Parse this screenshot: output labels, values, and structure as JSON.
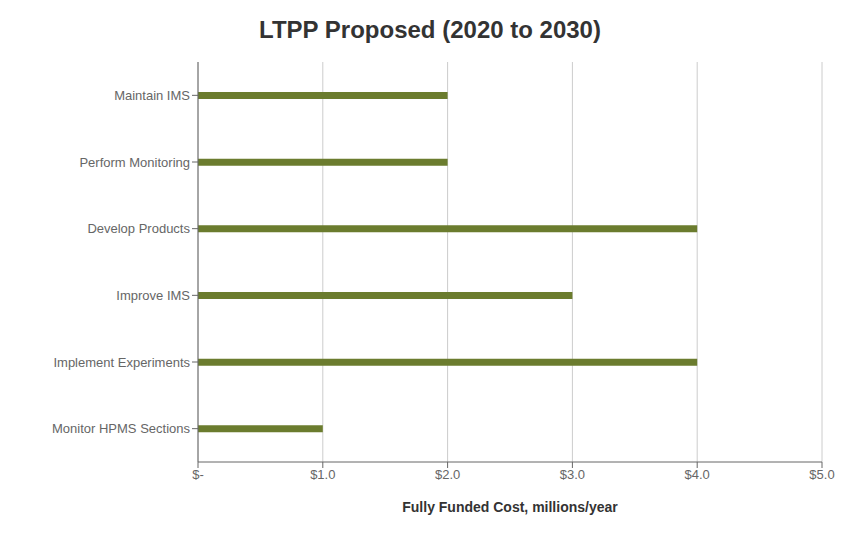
{
  "chart_data": {
    "type": "bar",
    "title": "LTPP Proposed (2020 to 2030)",
    "orientation": "horizontal",
    "categories": [
      "Monitor HPMS Sections",
      "Implement Experiments",
      "Improve IMS",
      "Develop Products",
      "Perform Monitoring",
      "Maintain IMS"
    ],
    "values": [
      1.0,
      4.0,
      3.0,
      4.0,
      2.0,
      2.0
    ],
    "color": "#6b7c2e",
    "xlabel": "Fully Funded Cost, millions/year",
    "xlim": [
      0,
      5.0
    ],
    "xticks": [
      {
        "value": 0,
        "label": "$-"
      },
      {
        "value": 1.0,
        "label": "$1.0"
      },
      {
        "value": 2.0,
        "label": "$2.0"
      },
      {
        "value": 3.0,
        "label": "$3.0"
      },
      {
        "value": 4.0,
        "label": "$4.0"
      },
      {
        "value": 5.0,
        "label": "$5.0"
      }
    ],
    "grid": true
  }
}
